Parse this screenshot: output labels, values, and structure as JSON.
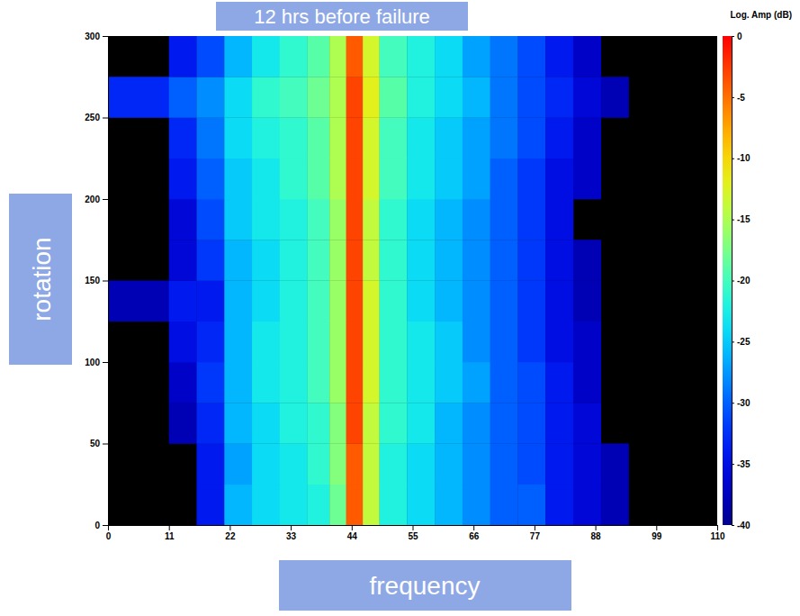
{
  "chart_data": {
    "type": "heatmap",
    "title": "12 hrs before failure",
    "x_label": "frequency",
    "y_label": "rotation",
    "xlim": [
      0,
      110
    ],
    "xticks": [
      0,
      11,
      22,
      33,
      44,
      55,
      66,
      77,
      88,
      99,
      110
    ],
    "ylim": [
      0,
      300
    ],
    "yticks": [
      0,
      50,
      100,
      150,
      200,
      250,
      300
    ],
    "x_edges": [
      0,
      11,
      16,
      21,
      26,
      31,
      36,
      40,
      43,
      46,
      49,
      54,
      59,
      64,
      69,
      74,
      79,
      84,
      89,
      94,
      99,
      110
    ],
    "y_edges": [
      0,
      25,
      50,
      75,
      100,
      125,
      150,
      175,
      200,
      225,
      250,
      275,
      300
    ],
    "values": [
      [
        null,
        null,
        -34,
        -26,
        -24,
        -23,
        -22,
        -18,
        -4,
        -14,
        -22,
        -24,
        -26,
        -28,
        -30,
        -30,
        -34,
        -36,
        -38,
        null,
        null
      ],
      [
        null,
        null,
        -34,
        -27,
        -24,
        -23,
        -21,
        -17,
        -4,
        -14,
        -22,
        -24,
        -26,
        -28,
        -30,
        -31,
        -34,
        -36,
        -38,
        null,
        null
      ],
      [
        null,
        -38,
        -33,
        -26,
        -24,
        -22,
        -21,
        -17,
        -3,
        -14,
        -21,
        -23,
        -26,
        -28,
        -30,
        -31,
        -34,
        -36,
        null,
        null,
        null
      ],
      [
        null,
        -37,
        -32,
        -26,
        -23,
        -22,
        -20,
        -16,
        -3,
        -13,
        -21,
        -23,
        -25,
        -27,
        -30,
        -31,
        -34,
        -37,
        null,
        null,
        null
      ],
      [
        null,
        -35,
        -33,
        -26,
        -23,
        -22,
        -20,
        -16,
        -3,
        -13,
        -21,
        -23,
        -25,
        -28,
        -30,
        -32,
        -35,
        -37,
        null,
        null,
        null
      ],
      [
        -38,
        -34,
        -34,
        -26,
        -24,
        -22,
        -20,
        -16,
        -3,
        -13,
        -21,
        -24,
        -26,
        -28,
        -30,
        -32,
        -35,
        -38,
        null,
        null,
        null
      ],
      [
        null,
        -36,
        -32,
        -26,
        -24,
        -22,
        -20,
        -16,
        -3,
        -14,
        -21,
        -24,
        -26,
        -28,
        -30,
        -32,
        -35,
        -38,
        null,
        null,
        null
      ],
      [
        null,
        -36,
        -31,
        -25,
        -23,
        -22,
        -20,
        -16,
        -3,
        -14,
        -21,
        -24,
        -26,
        -28,
        -30,
        -32,
        -35,
        null,
        null,
        null,
        null
      ],
      [
        null,
        -34,
        -30,
        -25,
        -23,
        -21,
        -19,
        -15,
        -3,
        -13,
        -20,
        -23,
        -25,
        -27,
        -30,
        -32,
        -35,
        -37,
        null,
        null,
        null
      ],
      [
        null,
        -33,
        -29,
        -24,
        -22,
        -21,
        -19,
        -15,
        -3,
        -13,
        -20,
        -23,
        -25,
        -27,
        -29,
        -31,
        -34,
        -37,
        null,
        null,
        null
      ],
      [
        -33,
        -30,
        -28,
        -24,
        -21,
        -20,
        -18,
        -15,
        -3,
        -12,
        -19,
        -22,
        -24,
        -26,
        -29,
        -31,
        -33,
        -36,
        -38,
        null,
        null
      ],
      [
        null,
        -34,
        -31,
        -26,
        -23,
        -21,
        -19,
        -15,
        -4,
        -13,
        -20,
        -22,
        -24,
        -27,
        -29,
        -31,
        -34,
        -37,
        null,
        null,
        null
      ]
    ],
    "colorbar": {
      "label": "Log. Amp (dB)",
      "range": [
        -40,
        0
      ],
      "ticks": [
        -40,
        -35,
        -30,
        -25,
        -20,
        -15,
        -10,
        -5,
        0
      ]
    }
  }
}
